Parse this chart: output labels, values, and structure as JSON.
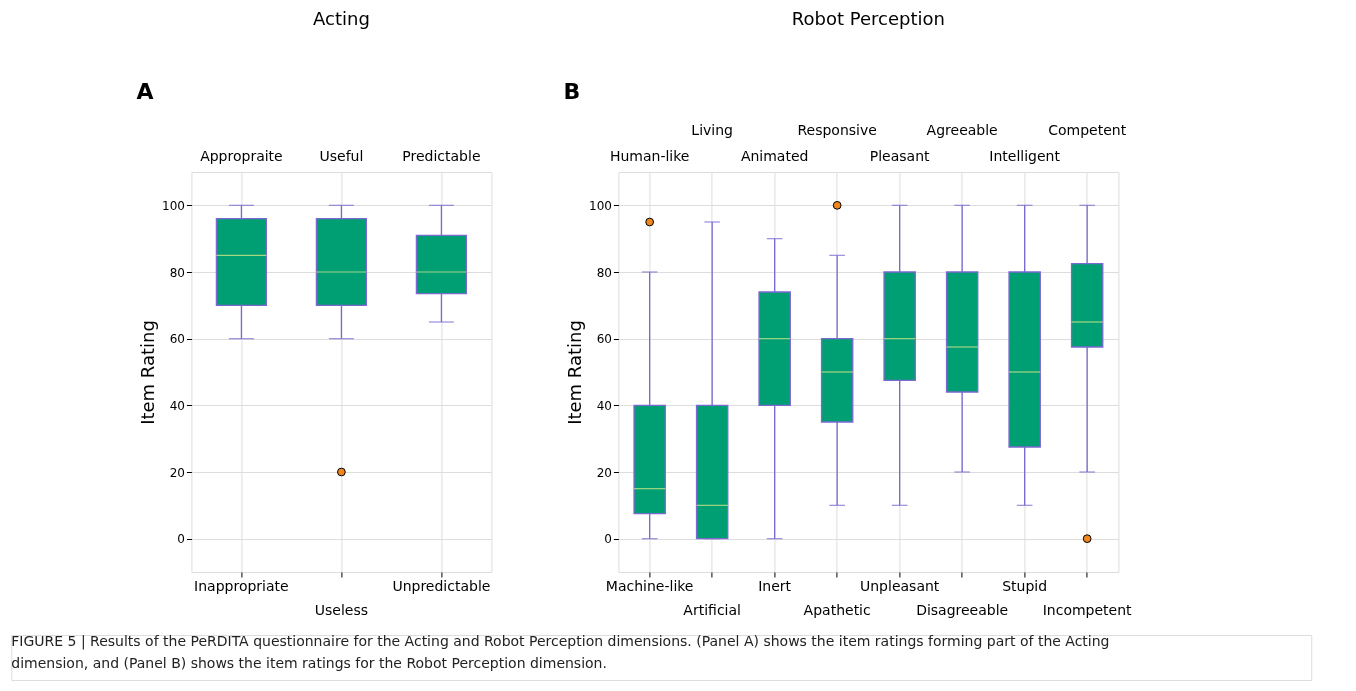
{
  "chart_data": [
    {
      "type": "box",
      "title": "Acting",
      "ylabel": "Item Rating",
      "annotations": [
        "A",
        "Appropraite",
        "Useful",
        "Predictable"
      ],
      "categories": [
        "Inappropriate",
        "Useless",
        "Unpredictable"
      ],
      "series": [
        {
          "color": "#009e73",
          "boxes": [
            {
              "low": 60,
              "q1": 70,
              "median": 85,
              "q3": 96,
              "high": 100
            },
            {
              "low": 60,
              "q1": 70,
              "median": 80,
              "q3": 96,
              "high": 100,
              "outliers": [
                20
              ]
            },
            {
              "low": 65,
              "q1": 73.5,
              "median": 80,
              "q3": 91,
              "high": 100
            }
          ]
        }
      ],
      "ylim": [
        -10,
        110
      ],
      "yticks": [
        0,
        20,
        40,
        60,
        80,
        100
      ],
      "grid": true,
      "marker": "circle"
    },
    {
      "type": "box",
      "title": "Robot Perception",
      "ylabel": "Item Rating",
      "annotations": [
        "B",
        "Human-like",
        "Living",
        "Animated",
        "Responsive",
        "Pleasant",
        "Agreeable",
        "Intelligent",
        "Competent",
        "FIGURE 5 | Results of the PeRDITA questionnaire for the Acting and Robot Perception dimensions. (Panel A) shows the item ratings forming part of the Acting dimension, and (Panel B) shows the item ratings for the Robot Perception dimension."
      ],
      "categories": [
        "Machine-like",
        "Artificial",
        "Inert",
        "Apathetic",
        "Unpleasant",
        "Disagreeable",
        "Stupid",
        "Incompetent"
      ],
      "series": [
        {
          "color": "#009e73",
          "boxes": [
            {
              "low": 0,
              "q1": 7.5,
              "median": 15,
              "q3": 40,
              "high": 80,
              "outliers": [
                95
              ]
            },
            {
              "low": 0,
              "q1": 0,
              "median": 10,
              "q3": 40,
              "high": 95
            },
            {
              "low": 0,
              "q1": 40,
              "median": 60,
              "q3": 74,
              "high": 90
            },
            {
              "low": 10,
              "q1": 35,
              "median": 50,
              "q3": 60,
              "high": 85,
              "outliers": [
                100
              ]
            },
            {
              "low": 10,
              "q1": 47.5,
              "median": 60,
              "q3": 80,
              "high": 100
            },
            {
              "low": 20,
              "q1": 44,
              "median": 57.5,
              "q3": 80,
              "high": 100
            },
            {
              "low": 10,
              "q1": 27.5,
              "median": 50,
              "q3": 80,
              "high": 100
            },
            {
              "low": 20,
              "q1": 57.5,
              "median": 65,
              "q3": 82.5,
              "high": 100,
              "outliers": [
                0
              ]
            }
          ]
        }
      ],
      "ylim": [
        -10,
        110
      ],
      "yticks": [
        0,
        20,
        40,
        60,
        80,
        100
      ],
      "grid": true,
      "marker": "circle"
    }
  ]
}
